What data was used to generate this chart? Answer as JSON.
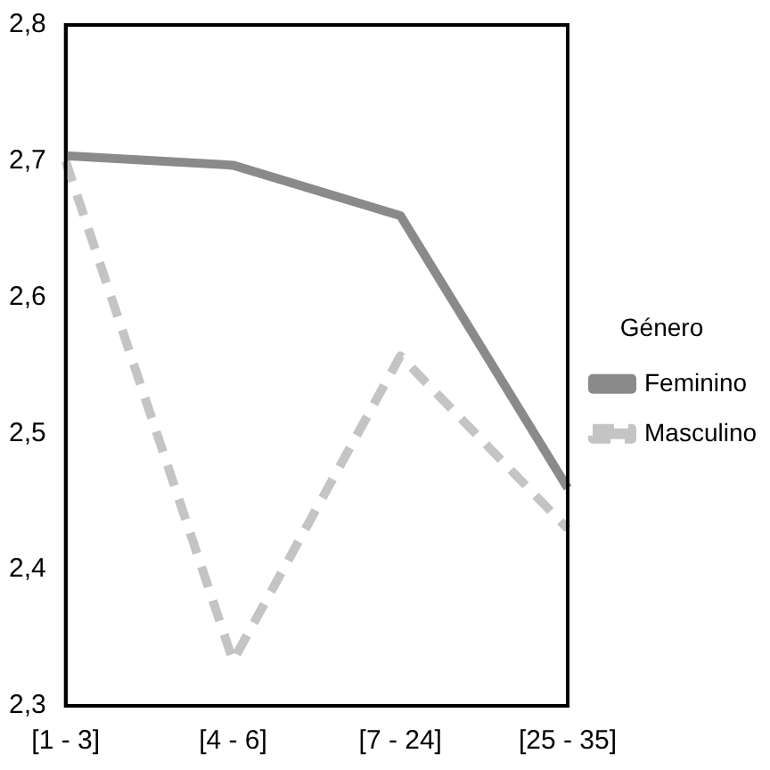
{
  "chart_data": {
    "type": "line",
    "legend_title": "Género",
    "legend": "right",
    "grid": false,
    "marker": "none",
    "categories": [
      "[1 - 3]",
      "[4 - 6]",
      "[7 - 24]",
      "[25 - 35]"
    ],
    "series": [
      {
        "name": "Feminino",
        "color": "#8a8a8a",
        "line_style": "solid",
        "values": [
          2.704,
          2.697,
          2.66,
          2.46
        ]
      },
      {
        "name": "Masculino",
        "color": "#c4c4c4",
        "line_style": "dashed",
        "values": [
          2.7,
          2.333,
          2.557,
          2.43
        ]
      }
    ],
    "ylim": [
      2.3,
      2.8
    ],
    "yticks": [
      {
        "value": 2.3,
        "label": "2,3"
      },
      {
        "value": 2.4,
        "label": "2,4"
      },
      {
        "value": 2.5,
        "label": "2,5"
      },
      {
        "value": 2.6,
        "label": "2,6"
      },
      {
        "value": 2.7,
        "label": "2,7"
      },
      {
        "value": 2.8,
        "label": "2,8"
      }
    ]
  }
}
